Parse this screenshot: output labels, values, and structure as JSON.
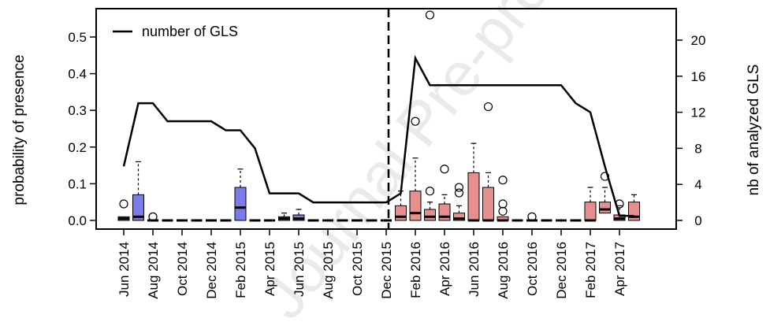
{
  "chart_data": {
    "type": "box",
    "ylabel": "probability of presence",
    "ylabel_right": "nb of analyzed GLS",
    "ylim": [
      0,
      0.55
    ],
    "y2lim": [
      0,
      22
    ],
    "yticks": [
      0.0,
      0.1,
      0.2,
      0.3,
      0.4,
      0.5
    ],
    "yticks_labels": [
      "0.0",
      "0.1",
      "0.2",
      "0.3",
      "0.4",
      "0.5"
    ],
    "y2ticks": [
      0,
      4,
      8,
      12,
      16,
      20
    ],
    "y2ticks_labels": [
      "0",
      "4",
      "8",
      "12",
      "16",
      "20"
    ],
    "xticks_labels": [
      "Jun 2014",
      "Aug 2014",
      "Oct 2014",
      "Dec 2014",
      "Feb 2015",
      "Apr 2015",
      "Jun 2015",
      "Aug 2015",
      "Oct 2015",
      "Dec 2015",
      "Feb 2016",
      "Apr 2016",
      "Jun 2016",
      "Aug 2016",
      "Oct 2016",
      "Dec 2016",
      "Feb 2017",
      "Apr 2017"
    ],
    "legend": {
      "label": "number of GLS",
      "position": "top-left"
    },
    "colors": {
      "period1": "#7b7bea",
      "period2": "#e5908e",
      "line": "#000000"
    },
    "divider_month_index": 18.5,
    "line_series": {
      "name": "number of GLS",
      "months": [
        "Jun 2014",
        "Jul 2014",
        "Aug 2014",
        "Sep 2014",
        "Oct 2014",
        "Nov 2014",
        "Dec 2014",
        "Jan 2015",
        "Feb 2015",
        "Mar 2015",
        "Apr 2015",
        "May 2015",
        "Jun 2015",
        "Jul 2015",
        "Aug 2015",
        "Sep 2015",
        "Oct 2015",
        "Nov 2015",
        "Dec 2015",
        "Jan 2016",
        "Feb 2016",
        "Mar 2016",
        "Apr 2016",
        "May 2016",
        "Jun 2016",
        "Jul 2016",
        "Aug 2016",
        "Sep 2016",
        "Oct 2016",
        "Nov 2016",
        "Dec 2016",
        "Jan 2017",
        "Feb 2017",
        "Mar 2017",
        "Apr 2017",
        "May 2017"
      ],
      "values": [
        6,
        13,
        13,
        11,
        11,
        11,
        11,
        10,
        10,
        8,
        3,
        3,
        3,
        2,
        2,
        2,
        2,
        2,
        2,
        3,
        18,
        15,
        15,
        15,
        15,
        15,
        15,
        15,
        15,
        15,
        15,
        13,
        12,
        6,
        0.5,
        0.5
      ]
    },
    "boxes": [
      {
        "month": "Jun 2014",
        "period": 1,
        "min": 0,
        "q1": 0.0,
        "median": 0.005,
        "q3": 0.01,
        "max": 0.01,
        "outliers": [
          0.045
        ]
      },
      {
        "month": "Jul 2014",
        "period": 1,
        "min": 0,
        "q1": 0.0,
        "median": 0.01,
        "q3": 0.07,
        "max": 0.16,
        "outliers": []
      },
      {
        "month": "Aug 2014",
        "period": 1,
        "min": 0,
        "q1": 0,
        "median": 0,
        "q3": 0,
        "max": 0,
        "outliers": [
          0.01
        ]
      },
      {
        "month": "Sep 2014",
        "period": 1,
        "min": 0,
        "q1": 0,
        "median": 0,
        "q3": 0,
        "max": 0,
        "outliers": []
      },
      {
        "month": "Oct 2014",
        "period": 1,
        "min": 0,
        "q1": 0,
        "median": 0,
        "q3": 0,
        "max": 0,
        "outliers": []
      },
      {
        "month": "Nov 2014",
        "period": 1,
        "min": 0,
        "q1": 0,
        "median": 0,
        "q3": 0,
        "max": 0,
        "outliers": []
      },
      {
        "month": "Dec 2014",
        "period": 1,
        "min": 0,
        "q1": 0,
        "median": 0,
        "q3": 0,
        "max": 0,
        "outliers": []
      },
      {
        "month": "Jan 2015",
        "period": 1,
        "min": 0,
        "q1": 0,
        "median": 0,
        "q3": 0,
        "max": 0,
        "outliers": []
      },
      {
        "month": "Feb 2015",
        "period": 1,
        "min": 0,
        "q1": 0.0,
        "median": 0.035,
        "q3": 0.09,
        "max": 0.14,
        "outliers": []
      },
      {
        "month": "Mar 2015",
        "period": 1,
        "min": 0,
        "q1": 0,
        "median": 0,
        "q3": 0,
        "max": 0,
        "outliers": []
      },
      {
        "month": "Apr 2015",
        "period": 1,
        "min": 0,
        "q1": 0,
        "median": 0,
        "q3": 0,
        "max": 0,
        "outliers": []
      },
      {
        "month": "May 2015",
        "period": 1,
        "min": 0,
        "q1": 0.0,
        "median": 0.005,
        "q3": 0.01,
        "max": 0.02,
        "outliers": []
      },
      {
        "month": "Jun 2015",
        "period": 1,
        "min": 0,
        "q1": 0.0,
        "median": 0.005,
        "q3": 0.015,
        "max": 0.03,
        "outliers": []
      },
      {
        "month": "Jul 2015",
        "period": 1,
        "min": 0,
        "q1": 0,
        "median": 0,
        "q3": 0,
        "max": 0,
        "outliers": []
      },
      {
        "month": "Aug 2015",
        "period": 1,
        "min": 0,
        "q1": 0,
        "median": 0,
        "q3": 0,
        "max": 0,
        "outliers": []
      },
      {
        "month": "Sep 2015",
        "period": 1,
        "min": 0,
        "q1": 0,
        "median": 0,
        "q3": 0,
        "max": 0,
        "outliers": []
      },
      {
        "month": "Oct 2015",
        "period": 1,
        "min": 0,
        "q1": 0,
        "median": 0,
        "q3": 0,
        "max": 0,
        "outliers": []
      },
      {
        "month": "Nov 2015",
        "period": 1,
        "min": 0,
        "q1": 0,
        "median": 0,
        "q3": 0,
        "max": 0,
        "outliers": []
      },
      {
        "month": "Dec 2015",
        "period": 2,
        "min": 0,
        "q1": 0,
        "median": 0,
        "q3": 0,
        "max": 0,
        "outliers": []
      },
      {
        "month": "Jan 2016",
        "period": 2,
        "min": 0,
        "q1": 0.0,
        "median": 0.01,
        "q3": 0.04,
        "max": 0.08,
        "outliers": []
      },
      {
        "month": "Feb 2016",
        "period": 2,
        "min": 0,
        "q1": 0.0,
        "median": 0.02,
        "q3": 0.08,
        "max": 0.17,
        "outliers": [
          0.27
        ]
      },
      {
        "month": "Mar 2016",
        "period": 2,
        "min": 0,
        "q1": 0.0,
        "median": 0.01,
        "q3": 0.03,
        "max": 0.05,
        "outliers": [
          0.08,
          0.56
        ]
      },
      {
        "month": "Apr 2016",
        "period": 2,
        "min": 0,
        "q1": 0.0,
        "median": 0.01,
        "q3": 0.045,
        "max": 0.07,
        "outliers": [
          0.14
        ]
      },
      {
        "month": "May 2016",
        "period": 2,
        "min": 0,
        "q1": 0.0,
        "median": 0.005,
        "q3": 0.02,
        "max": 0.04,
        "outliers": [
          0.075,
          0.09
        ]
      },
      {
        "month": "Jun 2016",
        "period": 2,
        "min": 0,
        "q1": 0.0,
        "median": 0.0,
        "q3": 0.13,
        "max": 0.21,
        "outliers": []
      },
      {
        "month": "Jul 2016",
        "period": 2,
        "min": 0,
        "q1": 0.0,
        "median": 0.0,
        "q3": 0.09,
        "max": 0.13,
        "outliers": [
          0.31
        ]
      },
      {
        "month": "Aug 2016",
        "period": 2,
        "min": 0,
        "q1": 0.0,
        "median": 0.0,
        "q3": 0.01,
        "max": 0.01,
        "outliers": [
          0.025,
          0.045,
          0.11
        ]
      },
      {
        "month": "Sep 2016",
        "period": 2,
        "min": 0,
        "q1": 0,
        "median": 0,
        "q3": 0,
        "max": 0,
        "outliers": []
      },
      {
        "month": "Oct 2016",
        "period": 2,
        "min": 0,
        "q1": 0,
        "median": 0,
        "q3": 0,
        "max": 0,
        "outliers": [
          0.01
        ]
      },
      {
        "month": "Nov 2016",
        "period": 2,
        "min": 0,
        "q1": 0,
        "median": 0,
        "q3": 0,
        "max": 0,
        "outliers": []
      },
      {
        "month": "Dec 2016",
        "period": 2,
        "min": 0,
        "q1": 0,
        "median": 0,
        "q3": 0,
        "max": 0,
        "outliers": []
      },
      {
        "month": "Jan 2017",
        "period": 2,
        "min": 0,
        "q1": 0,
        "median": 0,
        "q3": 0,
        "max": 0,
        "outliers": []
      },
      {
        "month": "Feb 2017",
        "period": 2,
        "min": 0,
        "q1": 0.0,
        "median": 0.0,
        "q3": 0.05,
        "max": 0.09,
        "outliers": []
      },
      {
        "month": "Mar 2017",
        "period": 2,
        "min": 0.005,
        "q1": 0.02,
        "median": 0.03,
        "q3": 0.05,
        "max": 0.09,
        "outliers": [
          0.12
        ]
      },
      {
        "month": "Apr 2017",
        "period": 2,
        "min": 0,
        "q1": 0.0,
        "median": 0.005,
        "q3": 0.015,
        "max": 0.04,
        "outliers": [
          0.045
        ]
      },
      {
        "month": "May 2017",
        "period": 2,
        "min": 0,
        "q1": 0.0,
        "median": 0.01,
        "q3": 0.05,
        "max": 0.07,
        "outliers": []
      }
    ]
  },
  "watermark": {
    "text": "Journal Pre-proof",
    "color": "#d8d8d8"
  }
}
